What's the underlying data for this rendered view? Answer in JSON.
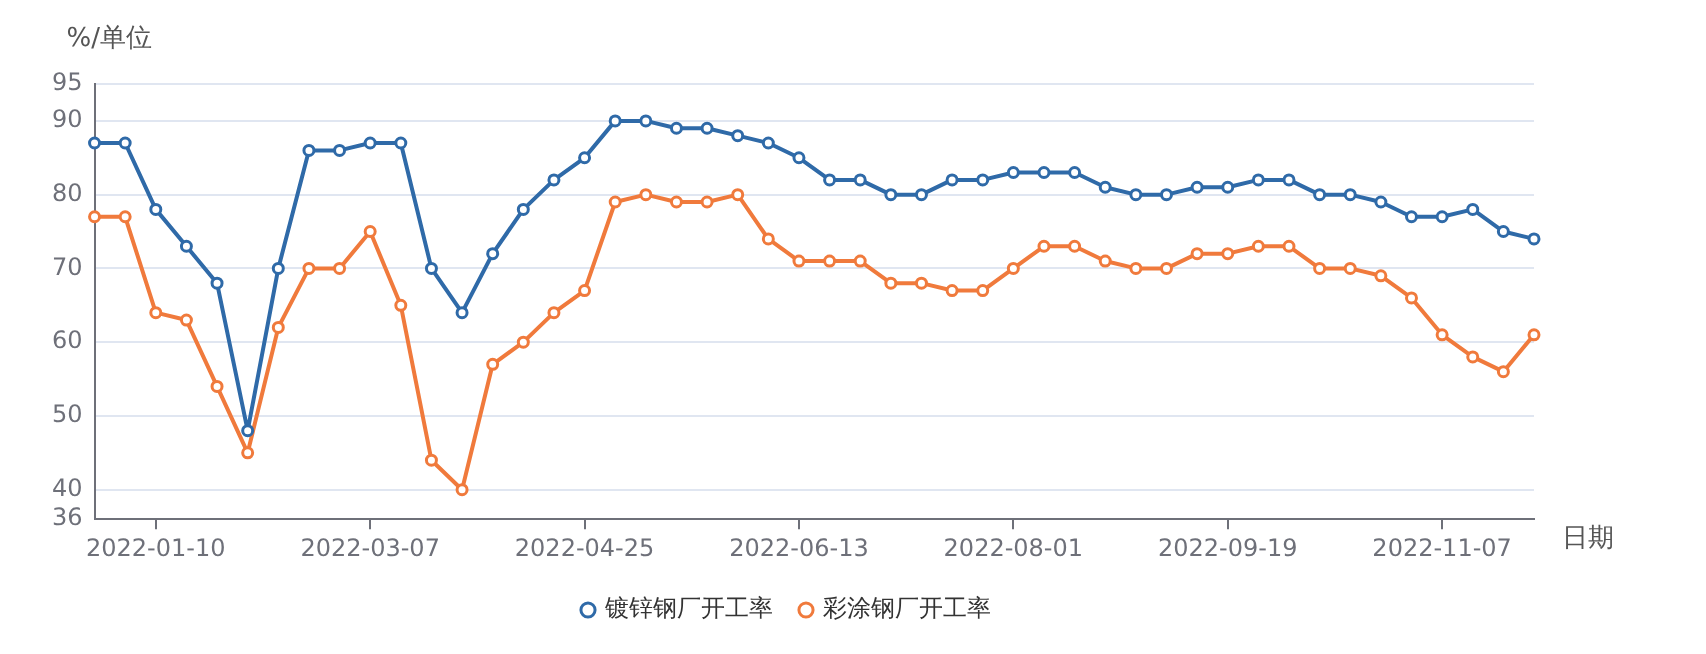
{
  "chart_data": {
    "type": "line",
    "ylabel": "%/单位",
    "xlabel": "日期",
    "categories": [
      null,
      null,
      "2022-01-10",
      null,
      null,
      null,
      null,
      null,
      null,
      "2022-03-07",
      null,
      null,
      null,
      null,
      null,
      null,
      "2022-04-25",
      null,
      null,
      null,
      null,
      null,
      null,
      "2022-06-13",
      null,
      null,
      null,
      null,
      null,
      null,
      "2022-08-01",
      null,
      null,
      null,
      null,
      null,
      null,
      "2022-09-19",
      null,
      null,
      null,
      null,
      null,
      null,
      "2022-11-07",
      null,
      null,
      null
    ],
    "series": [
      {
        "name": "镀锌钢厂开工率",
        "color": "#2f6aa8",
        "values": [
          87,
          87,
          78,
          73,
          68,
          48,
          70,
          86,
          86,
          87,
          87,
          70,
          64,
          72,
          78,
          82,
          85,
          90,
          90,
          89,
          89,
          88,
          87,
          85,
          82,
          82,
          80,
          80,
          82,
          82,
          83,
          83,
          83,
          81,
          80,
          80,
          81,
          81,
          82,
          82,
          80,
          80,
          79,
          77,
          77,
          78,
          75,
          74
        ]
      },
      {
        "name": "彩涂钢厂开工率",
        "color": "#f07a3c",
        "values": [
          77,
          77,
          64,
          63,
          54,
          45,
          62,
          70,
          70,
          75,
          65,
          44,
          40,
          57,
          60,
          64,
          67,
          79,
          80,
          79,
          79,
          80,
          74,
          71,
          71,
          71,
          68,
          68,
          67,
          67,
          70,
          73,
          73,
          71,
          70,
          70,
          72,
          72,
          73,
          73,
          70,
          70,
          69,
          66,
          61,
          58,
          56,
          61
        ]
      }
    ],
    "ylim": [
      36,
      95
    ],
    "yticks": [
      36,
      40,
      50,
      60,
      70,
      80,
      90,
      95
    ],
    "grid": "y",
    "legend": "bottom",
    "marker": "circle",
    "line_style": "solid"
  }
}
